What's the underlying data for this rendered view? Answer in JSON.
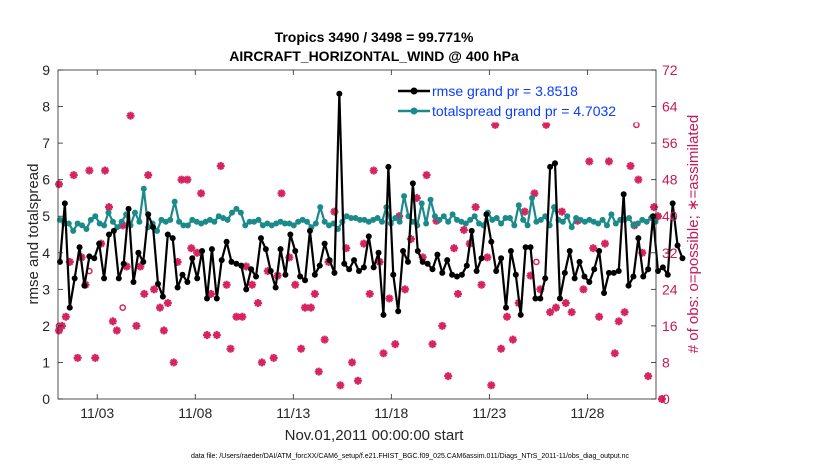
{
  "chart_data": {
    "type": "line",
    "title": "Tropics 3490 / 3498 = 99.771%",
    "subtitle": "AIRCRAFT_HORIZONTAL_WIND @ 400 hPa",
    "xlabel": "Nov.01,2011 00:00:00 start",
    "ylabel": "rmse and totalspread",
    "ylabel_right": "# of obs: o=possible; ∗=assimilated",
    "xlim": [
      1,
      31.5
    ],
    "ylim": [
      0,
      9
    ],
    "ylim_right": [
      0,
      72
    ],
    "x_ticks": [
      3,
      8,
      13,
      18,
      23,
      28
    ],
    "x_tick_labels": [
      "11/03",
      "11/08",
      "11/13",
      "11/18",
      "11/23",
      "11/28"
    ],
    "y_ticks": [
      0,
      1,
      2,
      3,
      4,
      5,
      6,
      7,
      8,
      9
    ],
    "y_ticks_right": [
      0,
      8,
      16,
      24,
      32,
      40,
      48,
      56,
      64,
      72
    ],
    "legend_position": "top-right",
    "colors": {
      "rmse": "#000000",
      "totalspread": "#1a8a8a",
      "obs": "#d6245f",
      "legend_text": "#0a3cff"
    },
    "series": [
      {
        "name": "rmse grand pr = 3.8518",
        "key": "rmse",
        "values": [
          3.75,
          5.35,
          2.5,
          3.3,
          4.15,
          3.1,
          3.9,
          3.85,
          4.25,
          3.3,
          4.5,
          4.6,
          3.3,
          3.7,
          5.2,
          3.2,
          4.0,
          3.75,
          5.05,
          4.7,
          3.15,
          2.8,
          4.5,
          4.4,
          3.05,
          3.4,
          3.2,
          3.85,
          3.3,
          4.05,
          2.75,
          4.1,
          2.75,
          3.8,
          4.3,
          3.75,
          3.7,
          3.65,
          3.0,
          3.55,
          3.35,
          4.4,
          4.1,
          3.5,
          3.05,
          4.1,
          3.4,
          4.5,
          4.05,
          3.35,
          3.25,
          4.6,
          3.4,
          3.65,
          4.25,
          3.8,
          3.45,
          8.35,
          3.7,
          3.55,
          3.8,
          3.5,
          3.6,
          4.45,
          3.6,
          4.0,
          2.3,
          6.35,
          3.4,
          2.4,
          4.05,
          3.75,
          5.9,
          4.05,
          3.75,
          3.7,
          3.55,
          3.95,
          3.45,
          3.8,
          3.4,
          3.35,
          3.4,
          3.65,
          4.6,
          3.5,
          3.85,
          5.05,
          4.3,
          3.5,
          3.85,
          2.5,
          4.05,
          3.4,
          2.3,
          4.15,
          4.15,
          2.75,
          2.75,
          3.3,
          6.35,
          6.45,
          2.75,
          3.45,
          4.05,
          3.3,
          3.75,
          3.35,
          3.2,
          3.55,
          4.05,
          2.9,
          3.45,
          3.45,
          3.5,
          5.6,
          3.1,
          3.35,
          4.4,
          3.35,
          3.55,
          5.0,
          3.5,
          3.6,
          3.4,
          5.35,
          4.2,
          3.85
        ],
        "x_start": 1.1,
        "x_step": 0.25
      },
      {
        "name": "totalspread grand pr = 4.7032",
        "key": "totalspread",
        "values": [
          4.9,
          4.8,
          4.8,
          4.6,
          4.8,
          4.75,
          4.65,
          4.9,
          5.0,
          4.8,
          4.75,
          5.1,
          4.85,
          4.7,
          4.85,
          5.05,
          4.75,
          5.1,
          4.85,
          5.75,
          4.7,
          4.8,
          4.6,
          4.9,
          4.85,
          4.9,
          5.4,
          4.85,
          4.75,
          4.75,
          4.9,
          4.85,
          4.8,
          4.85,
          4.9,
          4.85,
          5.0,
          4.95,
          4.9,
          5.1,
          5.2,
          5.1,
          4.75,
          4.85,
          4.85,
          4.9,
          4.75,
          4.8,
          4.75,
          4.8,
          4.85,
          4.8,
          4.8,
          4.75,
          4.85,
          4.9,
          4.85,
          4.7,
          4.8,
          5.25,
          4.85,
          4.75,
          4.8,
          4.65,
          4.85,
          5.0,
          4.95,
          4.95,
          4.9,
          4.9,
          4.85,
          4.9,
          4.95,
          4.85,
          5.25,
          4.8,
          4.95,
          4.85,
          5.55,
          5.0,
          4.85,
          4.75,
          5.35,
          4.8,
          5.45,
          5.0,
          4.9,
          5.0,
          4.85,
          5.05,
          4.9,
          4.85,
          4.8,
          4.9,
          5.0,
          4.8,
          4.75,
          5.1,
          4.9,
          4.95,
          4.8,
          4.95,
          4.95,
          4.75,
          5.3,
          4.9,
          4.75,
          5.5,
          4.85,
          4.9,
          5.0,
          4.75,
          5.25,
          4.9,
          4.85,
          5.0,
          4.7,
          4.95,
          4.9,
          4.85,
          4.9,
          4.85,
          4.8,
          4.9,
          4.75,
          5.05,
          4.8,
          4.9,
          4.9,
          4.95,
          4.75,
          4.8,
          4.9,
          4.85,
          4.95,
          4.85
        ],
        "x_start": 1.1,
        "x_step": 0.225
      },
      {
        "name": "# of obs assimilated",
        "key": "obs_assimilated",
        "marker": "asterisk",
        "points": [
          [
            1.05,
            15
          ],
          [
            1.05,
            47
          ],
          [
            1.2,
            16
          ],
          [
            1.4,
            18
          ],
          [
            1.6,
            30
          ],
          [
            1.8,
            49
          ],
          [
            2.0,
            9
          ],
          [
            2.2,
            31
          ],
          [
            2.4,
            25
          ],
          [
            2.6,
            50
          ],
          [
            2.9,
            9
          ],
          [
            3.2,
            34
          ],
          [
            3.4,
            50
          ],
          [
            3.6,
            42
          ],
          [
            3.8,
            17
          ],
          [
            4.0,
            15
          ],
          [
            4.3,
            38
          ],
          [
            4.5,
            29
          ],
          [
            4.7,
            62
          ],
          [
            5.0,
            16
          ],
          [
            5.2,
            29
          ],
          [
            5.4,
            23
          ],
          [
            5.6,
            49
          ],
          [
            5.9,
            24
          ],
          [
            6.2,
            20
          ],
          [
            6.4,
            15
          ],
          [
            6.6,
            21
          ],
          [
            6.9,
            8
          ],
          [
            7.1,
            30
          ],
          [
            7.3,
            48
          ],
          [
            7.6,
            48
          ],
          [
            7.8,
            33
          ],
          [
            8.1,
            32
          ],
          [
            8.3,
            45
          ],
          [
            8.6,
            14
          ],
          [
            8.8,
            23
          ],
          [
            9.1,
            14
          ],
          [
            9.3,
            51
          ],
          [
            9.6,
            25
          ],
          [
            9.8,
            11
          ],
          [
            10.1,
            18
          ],
          [
            10.4,
            18
          ],
          [
            10.6,
            29
          ],
          [
            10.9,
            25
          ],
          [
            11.2,
            21
          ],
          [
            11.4,
            8
          ],
          [
            11.7,
            28
          ],
          [
            12.0,
            9
          ],
          [
            12.2,
            27
          ],
          [
            12.4,
            45
          ],
          [
            12.8,
            31
          ],
          [
            13.1,
            25
          ],
          [
            13.4,
            11
          ],
          [
            13.6,
            20
          ],
          [
            13.9,
            20
          ],
          [
            14.1,
            23
          ],
          [
            14.3,
            6
          ],
          [
            14.6,
            13
          ],
          [
            14.8,
            30
          ],
          [
            15.1,
            41
          ],
          [
            15.4,
            3
          ],
          [
            15.7,
            33
          ],
          [
            16.0,
            8
          ],
          [
            16.3,
            4
          ],
          [
            16.6,
            34
          ],
          [
            16.9,
            23
          ],
          [
            17.1,
            50
          ],
          [
            17.4,
            30
          ],
          [
            17.6,
            10
          ],
          [
            17.9,
            22
          ],
          [
            18.2,
            12
          ],
          [
            18.4,
            40
          ],
          [
            18.7,
            24
          ],
          [
            19.0,
            35
          ],
          [
            19.3,
            44
          ],
          [
            19.6,
            31
          ],
          [
            19.8,
            49
          ],
          [
            20.1,
            12
          ],
          [
            20.3,
            39
          ],
          [
            20.6,
            16
          ],
          [
            20.9,
            5
          ],
          [
            21.2,
            33
          ],
          [
            21.4,
            23
          ],
          [
            21.7,
            37
          ],
          [
            22.0,
            34
          ],
          [
            22.3,
            42
          ],
          [
            22.6,
            25
          ],
          [
            22.9,
            31
          ],
          [
            23.1,
            3
          ],
          [
            23.3,
            60
          ],
          [
            23.6,
            11
          ],
          [
            23.9,
            18
          ],
          [
            24.2,
            13
          ],
          [
            24.5,
            21
          ],
          [
            24.8,
            41
          ],
          [
            25.1,
            27
          ],
          [
            25.3,
            45
          ],
          [
            25.6,
            24
          ],
          [
            25.9,
            60
          ],
          [
            26.1,
            19
          ],
          [
            26.4,
            20
          ],
          [
            26.7,
            41
          ],
          [
            26.9,
            21
          ],
          [
            27.2,
            19
          ],
          [
            27.5,
            39
          ],
          [
            27.8,
            24
          ],
          [
            28.1,
            52
          ],
          [
            28.3,
            33
          ],
          [
            28.6,
            18
          ],
          [
            28.9,
            34
          ],
          [
            29.1,
            52
          ],
          [
            29.4,
            10
          ],
          [
            29.6,
            17
          ],
          [
            29.9,
            19
          ],
          [
            30.2,
            51
          ],
          [
            30.4,
            38
          ],
          [
            30.6,
            48
          ],
          [
            30.8,
            32
          ],
          [
            31.1,
            5
          ],
          [
            31.4,
            42
          ],
          [
            31.6,
            40
          ],
          [
            31.8,
            0
          ]
        ]
      },
      {
        "name": "# of obs possible",
        "key": "obs_possible",
        "marker": "circle",
        "points": [
          [
            1.05,
            16
          ],
          [
            2.6,
            28
          ],
          [
            4.3,
            20
          ],
          [
            25.4,
            30
          ],
          [
            30.5,
            60
          ]
        ]
      }
    ]
  },
  "footnote": "data file: /Users/raeder/DAI/ATM_forcXX/CAM6_setup/f.e21.FHIST_BGC.f09_025.CAM6assim.011/Diags_NTrS_2011-11/obs_diag_output.nc"
}
